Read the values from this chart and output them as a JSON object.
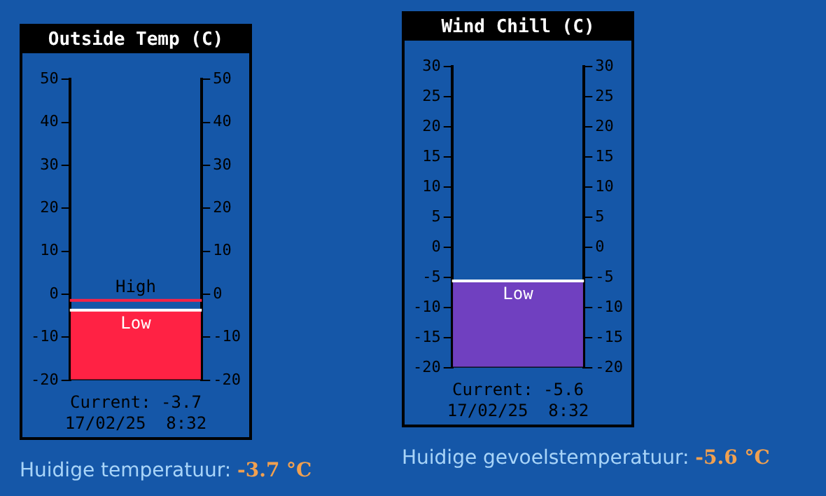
{
  "chart_data": [
    {
      "type": "bar",
      "title": "Outside Temp (C)",
      "categories": [
        null
      ],
      "base": [
        -20
      ],
      "values": [
        16.3
      ],
      "color": "#ff2244",
      "ylim": [
        -20,
        50
      ],
      "yticks": [
        -20,
        -10,
        0,
        10,
        20,
        30,
        40,
        50
      ],
      "y2lim": [
        -20,
        50
      ],
      "y2ticks": [
        -20,
        -10,
        0,
        10,
        20,
        30,
        40,
        50
      ],
      "tick_labels": "y",
      "grid": false,
      "legend": false,
      "ref_lines": [
        {
          "axis": "y",
          "value": -1.4,
          "label": "High",
          "color": "#ff2244"
        },
        {
          "axis": "y",
          "value": -3.7,
          "label": "Low",
          "color": "#ffffff"
        }
      ],
      "annotations": [
        "Current: -3.7",
        "17/02/25  8:32",
        "Huidige temperatuur:",
        "-3.7 °C"
      ]
    },
    {
      "type": "bar",
      "title": "Wind Chill (C)",
      "categories": [
        null
      ],
      "base": [
        -20
      ],
      "values": [
        14.4
      ],
      "color": "#7040c0",
      "ylim": [
        -20,
        30
      ],
      "yticks": [
        -20,
        -15,
        -10,
        -5,
        0,
        5,
        10,
        15,
        20,
        25,
        30
      ],
      "y2lim": [
        -20,
        30
      ],
      "y2ticks": [
        -20,
        -15,
        -10,
        -5,
        0,
        5,
        10,
        15,
        20,
        25,
        30
      ],
      "tick_labels": "y",
      "grid": false,
      "legend": false,
      "ref_lines": [
        {
          "axis": "y",
          "value": -5.6,
          "label": "Low",
          "color": "#ffffff"
        }
      ],
      "annotations": [
        "Current: -5.6",
        "17/02/25  8:32",
        "Huidige gevoelstemperatuur:",
        "-5.6 °C"
      ]
    }
  ]
}
